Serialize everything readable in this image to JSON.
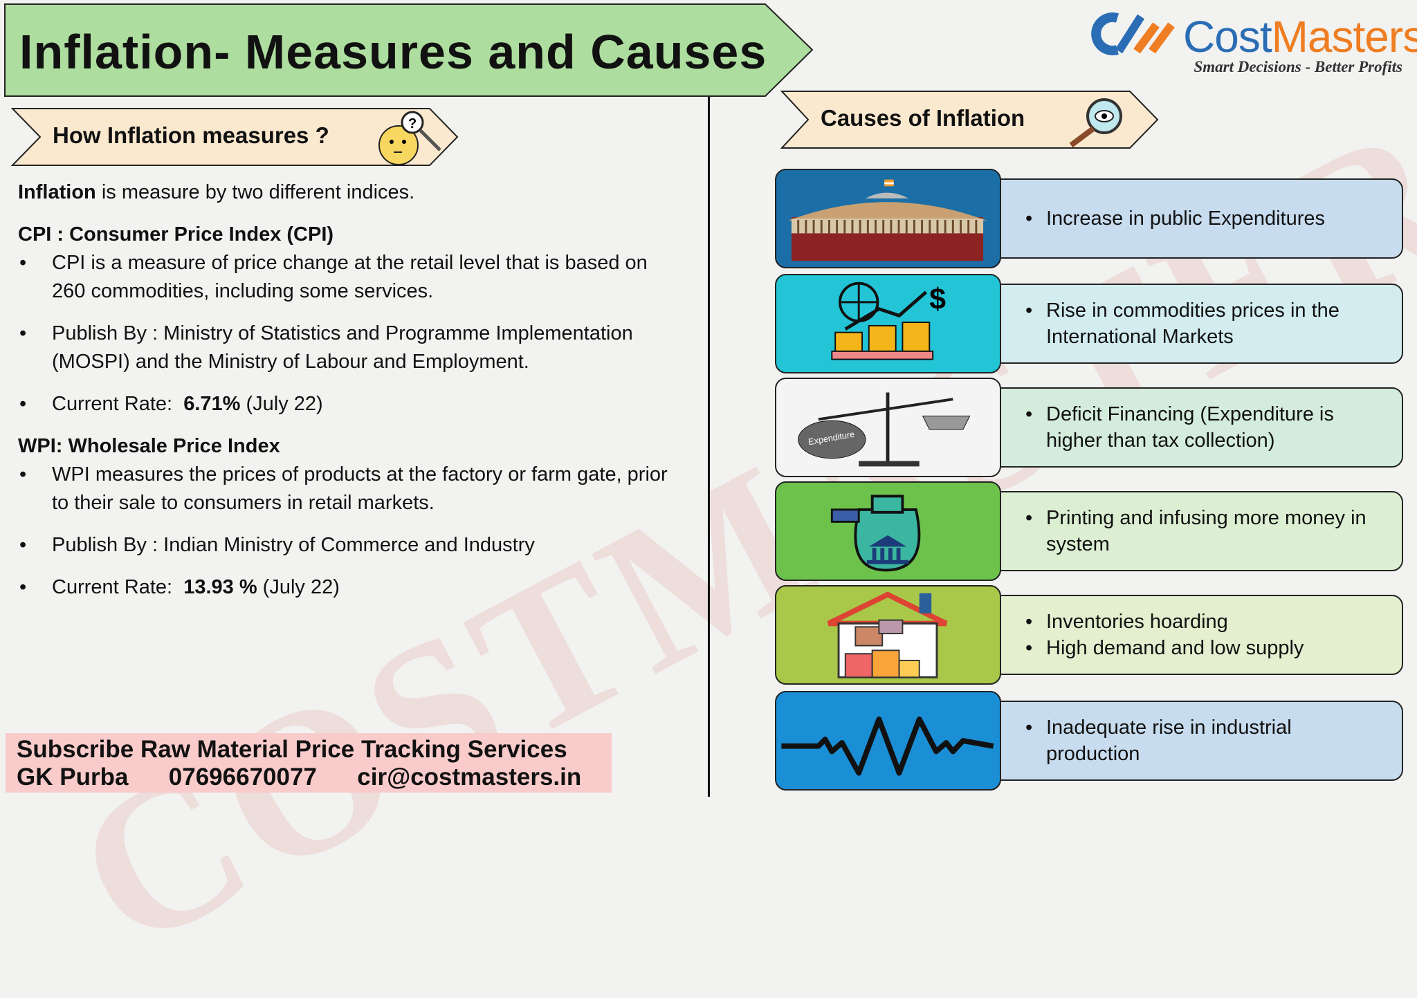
{
  "title": "Inflation- Measures and Causes",
  "logo": {
    "name_part1": "Cost",
    "name_part2": "Masters",
    "tagline": "Smart Decisions - Better Profits"
  },
  "watermark": "COSTMASTERS",
  "measures": {
    "heading": "How Inflation measures ?",
    "intro_bold": "Inflation",
    "intro_rest": " is measure by two different indices.",
    "cpi": {
      "heading": "CPI : Consumer Price Index (CPI)",
      "bullet1": "CPI is a measure of price change at the retail level that is based on 260 commodities, including some services.",
      "bullet2": "Publish By : Ministry of Statistics and Programme Implementation (MOSPI) and the Ministry of Labour and Employment.",
      "rate_label": "Current Rate:  ",
      "rate_value": "6.71%",
      "rate_period": " (July 22)"
    },
    "wpi": {
      "heading": "WPI: Wholesale Price Index",
      "bullet1": "WPI measures the prices of products at the factory or farm gate, prior to their sale to consumers in retail markets.",
      "bullet2": "Publish By : Indian Ministry of Commerce and Industry",
      "rate_label": "Current Rate:  ",
      "rate_value": "13.93 %",
      "rate_period": " (July 22)"
    }
  },
  "causes": {
    "heading": "Causes of Inflation",
    "items": [
      {
        "icon": "parliament-icon",
        "lines": [
          "Increase in public Expenditures"
        ],
        "img_bg": "#1b6ea6",
        "txt_bg": "#c8dcef"
      },
      {
        "icon": "global-commodities-icon",
        "lines": [
          "Rise in commodities prices in the International Markets"
        ],
        "img_bg": "#22c4d6",
        "txt_bg": "#d2ecf0"
      },
      {
        "icon": "balance-scale-icon",
        "lines": [
          "Deficit Financing (Expenditure is higher than tax collection)"
        ],
        "img_bg": "#f4f4f4",
        "txt_bg": "#d4ecdc"
      },
      {
        "icon": "money-bag-icon",
        "lines": [
          "Printing and infusing more money in system"
        ],
        "img_bg": "#6cc24a",
        "txt_bg": "#dcefd2"
      },
      {
        "icon": "warehouse-icon",
        "lines": [
          "Inventories hoarding",
          "High demand and low supply"
        ],
        "img_bg": "#a9c84a",
        "txt_bg": "#e3efcf"
      },
      {
        "icon": "pulse-wave-icon",
        "lines": [
          "Inadequate rise in industrial production"
        ],
        "img_bg": "#1a8fd6",
        "txt_bg": "#c8dcef"
      }
    ]
  },
  "footer": {
    "line1": "Subscribe Raw Material Price Tracking Services",
    "name": "GK Purba",
    "phone": "07696670077",
    "email": "cir@costmasters.in"
  }
}
